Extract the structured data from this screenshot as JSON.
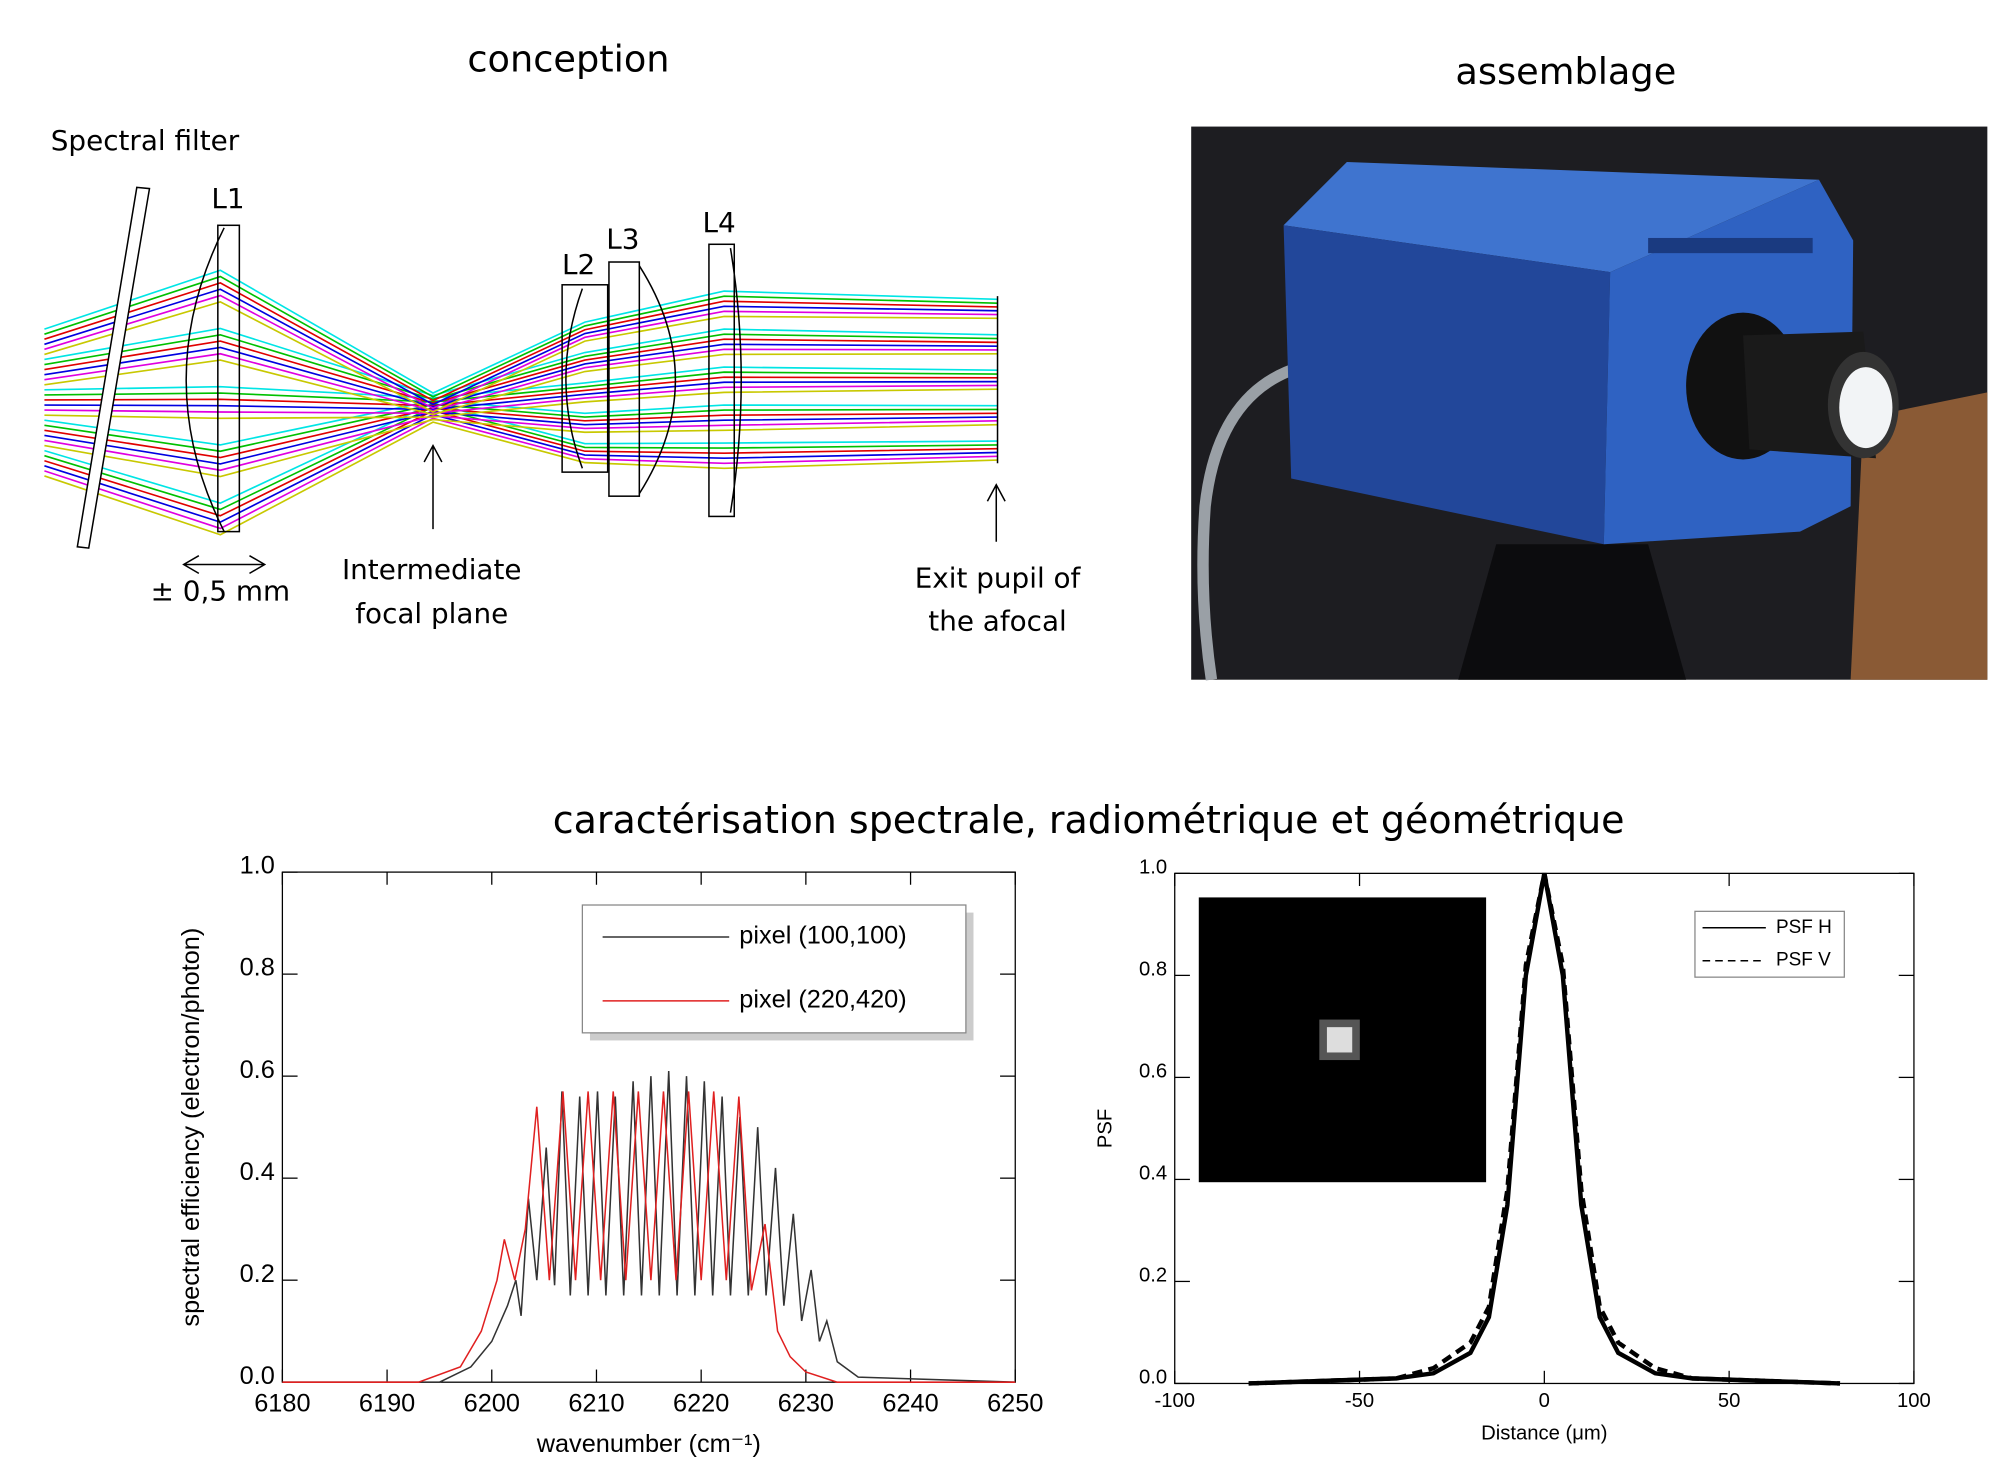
{
  "conception": {
    "title": "conception",
    "filter_label": "Spectral filter",
    "lenses": [
      "L1",
      "L2",
      "L3",
      "L4"
    ],
    "tolerance_label": "± 0,5 mm",
    "focal_label": [
      "Intermediate",
      "focal plane"
    ],
    "pupil_label": [
      "Exit pupil of",
      "the afocal"
    ]
  },
  "assemblage": {
    "title": "assemblage"
  },
  "characterisation": {
    "title": "caractérisation spectrale, radiométrique et géométrique"
  },
  "chart_data": [
    {
      "type": "line",
      "xlabel": "wavenumber (cm⁻¹)",
      "ylabel": "spectral efficiency (electron/photon)",
      "xlim": [
        6180,
        6250
      ],
      "xticks": [
        6180,
        6190,
        6200,
        6210,
        6220,
        6230,
        6240,
        6250
      ],
      "ylim": [
        0,
        1
      ],
      "yticks": [
        {
          "value": 0,
          "label": "0.0"
        },
        0.2,
        0.4,
        0.6,
        0.8,
        {
          "value": 1,
          "label": "1.0"
        }
      ],
      "legend": "upper right",
      "series": [
        {
          "name": "pixel (100,100)",
          "color": "#333333",
          "line_style": "solid",
          "x": [
            6180,
            6195,
            6198,
            6200,
            6201.5,
            6202.3,
            6202.8,
            6203.5,
            6204.3,
            6205.2,
            6206,
            6206.7,
            6207.5,
            6208.4,
            6209.2,
            6210.1,
            6210.9,
            6211.8,
            6212.6,
            6213.5,
            6214.3,
            6215.2,
            6216,
            6216.9,
            6217.7,
            6218.6,
            6219.4,
            6220.3,
            6221.1,
            6222,
            6222.8,
            6223.7,
            6224.5,
            6225.4,
            6226.2,
            6227.1,
            6227.9,
            6228.8,
            6229.6,
            6230.5,
            6231.3,
            6232,
            6233,
            6235,
            6250
          ],
          "values": [
            0,
            0,
            0.03,
            0.08,
            0.15,
            0.2,
            0.13,
            0.36,
            0.2,
            0.46,
            0.19,
            0.57,
            0.17,
            0.56,
            0.17,
            0.57,
            0.17,
            0.56,
            0.17,
            0.59,
            0.17,
            0.6,
            0.17,
            0.61,
            0.17,
            0.6,
            0.17,
            0.59,
            0.17,
            0.56,
            0.17,
            0.52,
            0.17,
            0.5,
            0.17,
            0.42,
            0.15,
            0.33,
            0.12,
            0.22,
            0.08,
            0.12,
            0.04,
            0.01,
            0
          ]
        },
        {
          "name": "pixel (220,420)",
          "color": "#e02020",
          "line_style": "solid",
          "x": [
            6180,
            6193,
            6197,
            6199,
            6200.5,
            6201.2,
            6202.2,
            6203.2,
            6204.3,
            6205.5,
            6206.8,
            6208,
            6209.2,
            6210.4,
            6211.6,
            6212.8,
            6214,
            6215.2,
            6216.4,
            6217.6,
            6218.8,
            6220,
            6221.2,
            6222.4,
            6223.6,
            6224.8,
            6226.1,
            6227.3,
            6228.5,
            6230,
            6233,
            6250
          ],
          "values": [
            0,
            0,
            0.03,
            0.1,
            0.2,
            0.28,
            0.2,
            0.3,
            0.54,
            0.2,
            0.57,
            0.2,
            0.57,
            0.2,
            0.57,
            0.2,
            0.57,
            0.2,
            0.57,
            0.2,
            0.57,
            0.2,
            0.57,
            0.2,
            0.56,
            0.18,
            0.31,
            0.1,
            0.05,
            0.02,
            0,
            0
          ]
        }
      ]
    },
    {
      "type": "line",
      "xlabel": "Distance (μm)",
      "ylabel": "PSF",
      "xlim": [
        -100,
        100
      ],
      "xticks": [
        -100,
        -50,
        0,
        50,
        100
      ],
      "ylim": [
        0,
        1
      ],
      "yticks": [
        {
          "value": 0,
          "label": "0.0"
        },
        0.2,
        0.4,
        0.6,
        0.8,
        {
          "value": 1,
          "label": "1.0"
        }
      ],
      "legend": "upper right",
      "series": [
        {
          "name": "PSF H",
          "color": "#000000",
          "line_style": "solid",
          "x": [
            -80,
            -40,
            -30,
            -20,
            -15,
            -10,
            -5,
            0,
            5,
            10,
            15,
            20,
            30,
            40,
            80
          ],
          "values": [
            0,
            0.01,
            0.02,
            0.06,
            0.13,
            0.35,
            0.8,
            1,
            0.8,
            0.35,
            0.13,
            0.06,
            0.02,
            0.01,
            0
          ]
        },
        {
          "name": "PSF V",
          "color": "#000000",
          "line_style": "dashed",
          "x": [
            -80,
            -40,
            -30,
            -20,
            -15,
            -10,
            -5,
            0,
            5,
            10,
            15,
            20,
            30,
            40,
            80
          ],
          "values": [
            0,
            0.01,
            0.03,
            0.08,
            0.15,
            0.38,
            0.82,
            1,
            0.82,
            0.38,
            0.15,
            0.08,
            0.03,
            0.01,
            0
          ]
        }
      ]
    }
  ]
}
